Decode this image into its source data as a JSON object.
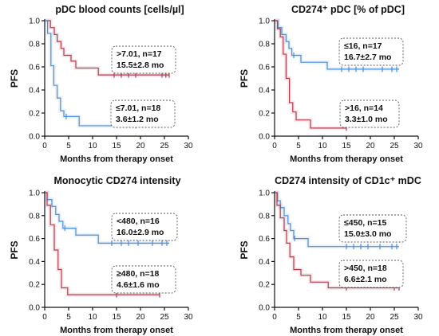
{
  "chart_data": [
    {
      "type": "line",
      "title": "pDC blood counts [cells/µl]",
      "xlabel": "Months from therapy onset",
      "ylabel": "PFS",
      "xlim": [
        0,
        30
      ],
      "ylim": [
        0,
        1.0
      ],
      "xticks": [
        "0",
        "5",
        "10",
        "15",
        "20",
        "25",
        "30"
      ],
      "yticks": [
        "0.0",
        "0.2",
        "0.4",
        "0.6",
        "0.8",
        "1.0"
      ],
      "series": [
        {
          "color": "#b33a4e",
          "label_lines": [
            ">7.01, n=17",
            "15.5±2.8 mo"
          ],
          "points": [
            [
              0,
              1.0
            ],
            [
              1.2,
              0.94
            ],
            [
              2.0,
              0.88
            ],
            [
              2.6,
              0.82
            ],
            [
              3.4,
              0.76
            ],
            [
              4.0,
              0.7
            ],
            [
              5.5,
              0.65
            ],
            [
              6.5,
              0.59
            ],
            [
              11.2,
              0.53
            ],
            [
              26.0,
              0.53
            ]
          ],
          "censor": [
            14.5,
            16.0,
            17.5,
            19.0,
            24.5,
            25.3,
            26.0
          ]
        },
        {
          "color": "#4d8fd6",
          "label_lines": [
            "≤7.01, n=18",
            "3.6±1.2 mo"
          ],
          "points": [
            [
              0,
              1.0
            ],
            [
              0.6,
              0.89
            ],
            [
              1.3,
              0.61
            ],
            [
              1.9,
              0.44
            ],
            [
              2.6,
              0.33
            ],
            [
              3.3,
              0.22
            ],
            [
              4.0,
              0.17
            ],
            [
              7.2,
              0.09
            ],
            [
              19.0,
              0.09
            ]
          ],
          "censor": [
            4.5,
            19.0
          ]
        }
      ]
    },
    {
      "type": "line",
      "title": "CD274⁺ pDC [% of pDC]",
      "xlabel": "Months from therapy onset",
      "ylabel": "PFS",
      "xlim": [
        0,
        30
      ],
      "ylim": [
        0,
        1.0
      ],
      "xticks": [
        "0",
        "5",
        "10",
        "15",
        "20",
        "25",
        "30"
      ],
      "yticks": [
        "0.0",
        "0.2",
        "0.4",
        "0.6",
        "0.8",
        "1.0"
      ],
      "series": [
        {
          "color": "#4d8fd6",
          "label_lines": [
            "≤16, n=17",
            "16.7±2.7 mo"
          ],
          "points": [
            [
              0,
              1.0
            ],
            [
              0.7,
              0.94
            ],
            [
              1.5,
              0.88
            ],
            [
              2.4,
              0.82
            ],
            [
              3.0,
              0.76
            ],
            [
              3.6,
              0.7
            ],
            [
              5.5,
              0.64
            ],
            [
              11.0,
              0.58
            ],
            [
              26.0,
              0.58
            ]
          ],
          "censor": [
            4.0,
            14.0,
            15.5,
            17.0,
            18.5,
            22.5,
            24.5,
            25.5
          ]
        },
        {
          "color": "#b33a4e",
          "label_lines": [
            ">16, n=14",
            "3.3±1.0 mo"
          ],
          "points": [
            [
              0,
              1.0
            ],
            [
              0.6,
              0.93
            ],
            [
              1.2,
              0.86
            ],
            [
              1.8,
              0.71
            ],
            [
              2.4,
              0.5
            ],
            [
              3.1,
              0.29
            ],
            [
              3.8,
              0.21
            ],
            [
              4.5,
              0.14
            ],
            [
              7.5,
              0.07
            ],
            [
              15.0,
              0.07
            ]
          ],
          "censor": [
            15.0
          ]
        }
      ]
    },
    {
      "type": "line",
      "title": "Monocytic CD274 intensity",
      "xlabel": "Months from therapy onset",
      "ylabel": "PFS",
      "xlim": [
        0,
        30
      ],
      "ylim": [
        0,
        1.0
      ],
      "xticks": [
        "0",
        "5",
        "10",
        "15",
        "20",
        "25",
        "30"
      ],
      "yticks": [
        "0.0",
        "0.2",
        "0.4",
        "0.6",
        "0.8",
        "1.0"
      ],
      "series": [
        {
          "color": "#4d8fd6",
          "label_lines": [
            "<480, n=16",
            "16.0±2.9 mo"
          ],
          "points": [
            [
              0,
              1.0
            ],
            [
              0.5,
              0.94
            ],
            [
              1.5,
              0.88
            ],
            [
              2.3,
              0.81
            ],
            [
              3.0,
              0.75
            ],
            [
              3.8,
              0.69
            ],
            [
              6.5,
              0.63
            ],
            [
              11.2,
              0.56
            ],
            [
              26.0,
              0.56
            ]
          ],
          "censor": [
            4.2,
            14.0,
            16.0,
            17.5,
            19.5,
            22.5,
            24.5,
            25.5
          ]
        },
        {
          "color": "#b33a4e",
          "label_lines": [
            "≥480, n=18",
            "4.6±1.6 mo"
          ],
          "points": [
            [
              0,
              1.0
            ],
            [
              0.5,
              0.89
            ],
            [
              1.2,
              0.72
            ],
            [
              2.0,
              0.5
            ],
            [
              2.8,
              0.33
            ],
            [
              3.5,
              0.17
            ],
            [
              4.8,
              0.11
            ],
            [
              24.0,
              0.11
            ]
          ],
          "censor": [
            15.0,
            24.0
          ]
        }
      ]
    },
    {
      "type": "line",
      "title": "CD274 intensity of CD1c⁺ mDC",
      "xlabel": "Months from therapy onset",
      "ylabel": "PFS",
      "xlim": [
        0,
        30
      ],
      "ylim": [
        0,
        1.0
      ],
      "xticks": [
        "0",
        "5",
        "10",
        "15",
        "20",
        "25",
        "30"
      ],
      "yticks": [
        "0.0",
        "0.2",
        "0.4",
        "0.6",
        "0.8",
        "1.0"
      ],
      "series": [
        {
          "color": "#4d8fd6",
          "label_lines": [
            "≤450, n=15",
            "15.0±3.0 mo"
          ],
          "points": [
            [
              0,
              1.0
            ],
            [
              0.6,
              0.93
            ],
            [
              1.2,
              0.87
            ],
            [
              2.0,
              0.8
            ],
            [
              2.8,
              0.73
            ],
            [
              3.3,
              0.67
            ],
            [
              4.0,
              0.6
            ],
            [
              7.0,
              0.53
            ],
            [
              26.0,
              0.53
            ]
          ],
          "censor": [
            4.2,
            15.0,
            16.5,
            18.0,
            19.5,
            22.0,
            24.5,
            25.5
          ]
        },
        {
          "color": "#b33a4e",
          "label_lines": [
            ">450, n=18",
            "6.6±2.1 mo"
          ],
          "points": [
            [
              0,
              1.0
            ],
            [
              0.5,
              0.89
            ],
            [
              1.2,
              0.78
            ],
            [
              2.0,
              0.67
            ],
            [
              2.5,
              0.56
            ],
            [
              3.2,
              0.44
            ],
            [
              4.0,
              0.33
            ],
            [
              5.5,
              0.28
            ],
            [
              7.5,
              0.22
            ],
            [
              11.2,
              0.17
            ],
            [
              26.0,
              0.17
            ]
          ],
          "censor": [
            15.0,
            25.0,
            26.0
          ]
        }
      ]
    }
  ]
}
